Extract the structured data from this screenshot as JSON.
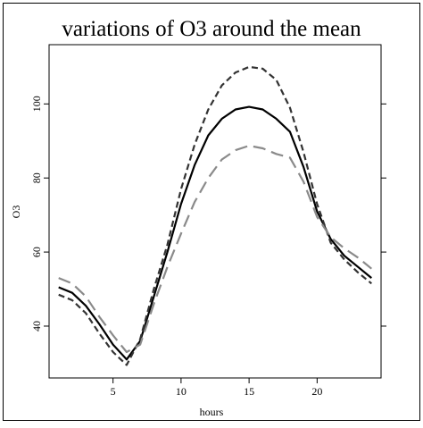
{
  "chart_data": {
    "type": "line",
    "title": "variations of O3 around the mean",
    "xlabel": "hours",
    "ylabel": "O3",
    "xlim": [
      0.3,
      24.7
    ],
    "ylim": [
      26,
      116
    ],
    "x_ticks": [
      "5",
      "10",
      "15",
      "20"
    ],
    "y_ticks": [
      "40",
      "60",
      "80",
      "100"
    ],
    "x_tick_values": [
      5,
      10,
      15,
      20
    ],
    "y_tick_values": [
      40,
      60,
      80,
      100
    ],
    "grid": false,
    "legend": "none",
    "x": [
      1,
      2,
      3,
      4,
      5,
      6,
      7,
      8,
      9,
      10,
      11,
      12,
      13,
      14,
      15,
      16,
      17,
      18,
      19,
      20,
      21,
      22,
      23,
      24
    ],
    "series": [
      {
        "style": "solid",
        "color": "#000000",
        "values": [
          50.5,
          49,
          45.5,
          40.5,
          35,
          31,
          36,
          48,
          60,
          73,
          83.5,
          91.5,
          96,
          98.5,
          99.2,
          98.5,
          96,
          92.5,
          83,
          71,
          63.5,
          59,
          56,
          53
        ]
      },
      {
        "style": "short-dash",
        "color": "#333333",
        "values": [
          48.5,
          47,
          43.5,
          38,
          33,
          29.5,
          36.5,
          50,
          62,
          77,
          89,
          98.5,
          105,
          108.5,
          110,
          109.5,
          106.5,
          99,
          87,
          73,
          62.5,
          58,
          54.5,
          51.5
        ]
      },
      {
        "style": "long-dash",
        "color": "#8a8a8a",
        "values": [
          53,
          51.5,
          48,
          42.5,
          37.5,
          33,
          35,
          46,
          56,
          65,
          73.5,
          80,
          85,
          87.5,
          88.7,
          88,
          86.5,
          85.5,
          79,
          69.5,
          64,
          61,
          58.5,
          55.5
        ]
      }
    ]
  }
}
